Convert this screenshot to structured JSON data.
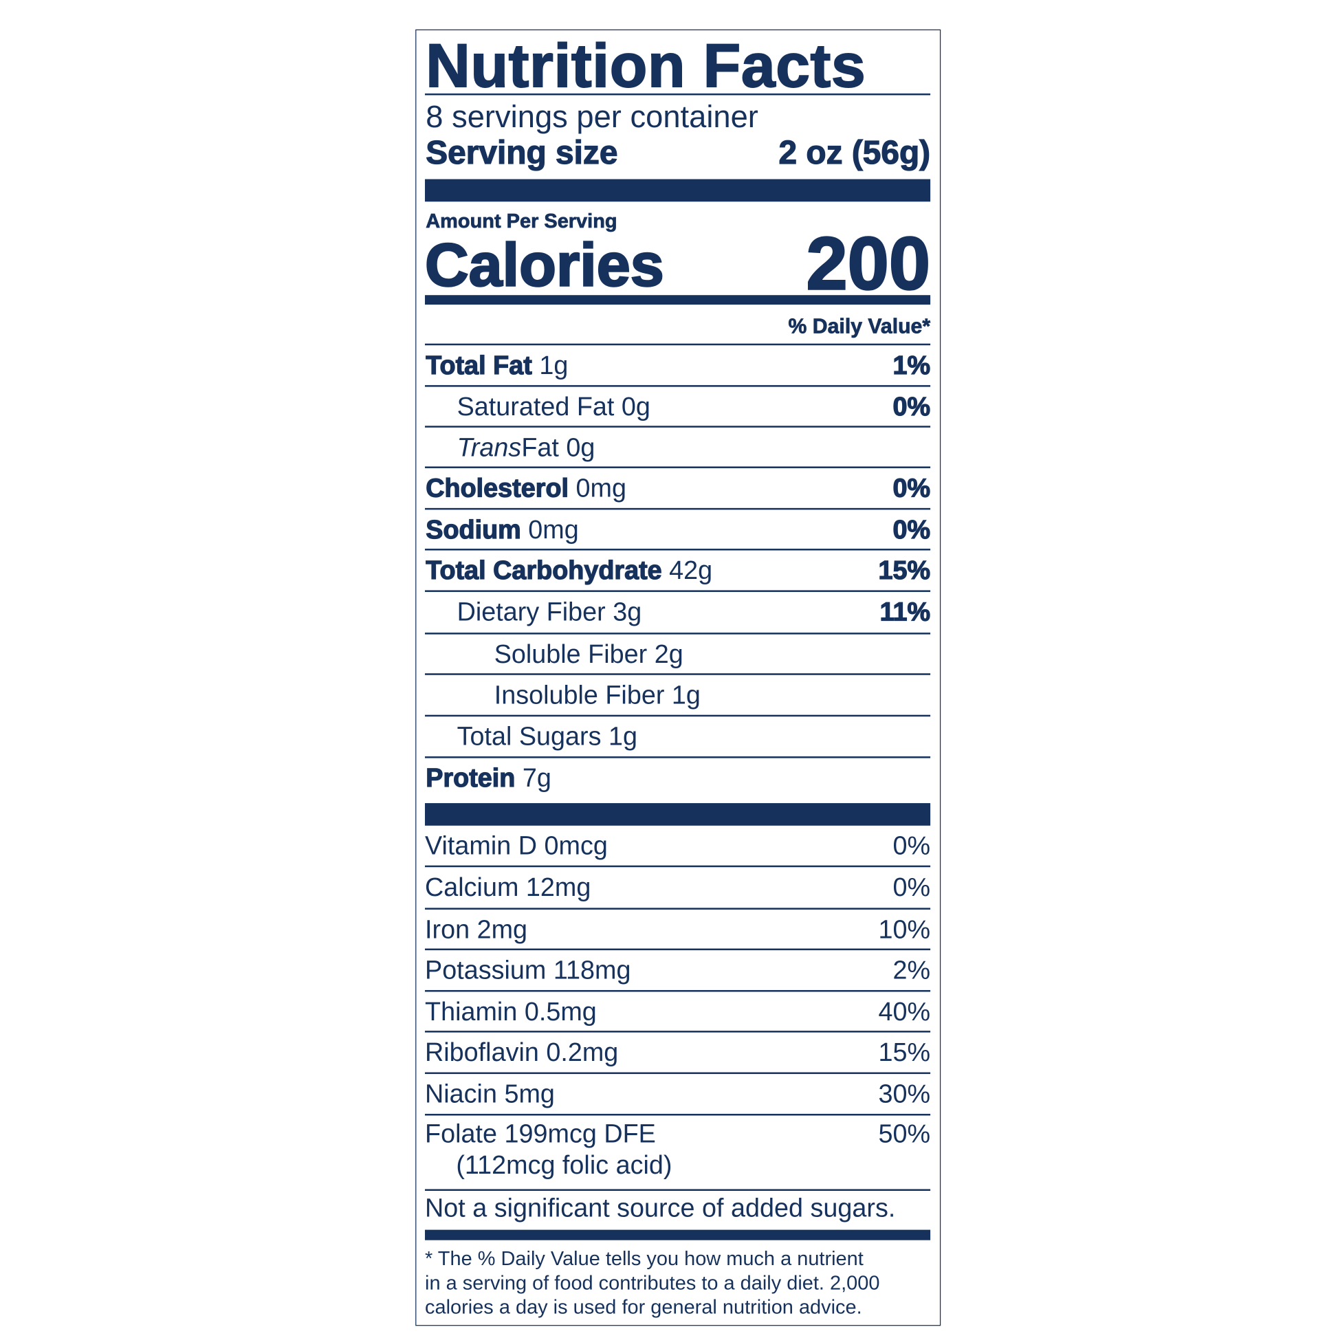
{
  "title": "Nutrition Facts",
  "servings_per_container": "8 servings per container",
  "serving_size": {
    "label": "Serving size",
    "value": "2 oz (56g)"
  },
  "amount_per_serving": "Amount Per Serving",
  "calories": {
    "label": "Calories",
    "value": "200"
  },
  "daily_value_header": "% Daily Value*",
  "nutrients": [
    {
      "name": "Total Fat",
      "amount": "1g",
      "dv": "1%",
      "bold": true,
      "indent": 0
    },
    {
      "name": "Saturated Fat",
      "amount": "0g",
      "dv": "0%",
      "bold": false,
      "indent": 1,
      "dv_bold": true
    },
    {
      "italic": "Trans",
      "name": " Fat",
      "amount": "0g",
      "dv": "",
      "bold": false,
      "indent": 1
    },
    {
      "name": "Cholesterol",
      "amount": "0mg",
      "dv": "0%",
      "bold": true,
      "indent": 0
    },
    {
      "name": "Sodium",
      "amount": "0mg",
      "dv": "0%",
      "bold": true,
      "indent": 0
    },
    {
      "name": "Total Carbohydrate",
      "amount": "42g",
      "dv": "15%",
      "bold": true,
      "indent": 0
    },
    {
      "name": "Dietary Fiber",
      "amount": "3g",
      "dv": "11%",
      "bold": false,
      "indent": 1,
      "dv_bold": true
    },
    {
      "name": "Soluble Fiber",
      "amount": "2g",
      "dv": "",
      "bold": false,
      "indent": 2
    },
    {
      "name": "Insoluble Fiber",
      "amount": "1g",
      "dv": "",
      "bold": false,
      "indent": 2
    },
    {
      "name": "Total Sugars",
      "amount": "1g",
      "dv": "",
      "bold": false,
      "indent": 1
    },
    {
      "name": "Protein",
      "amount": "7g",
      "dv": "",
      "bold": true,
      "indent": 0
    }
  ],
  "vitamins": [
    {
      "name": "Vitamin D",
      "amount": "0mcg",
      "dv": "0%"
    },
    {
      "name": "Calcium",
      "amount": "12mg",
      "dv": "0%"
    },
    {
      "name": "Iron",
      "amount": "2mg",
      "dv": "10%"
    },
    {
      "name": "Potassium",
      "amount": "118mg",
      "dv": "2%"
    },
    {
      "name": "Thiamin",
      "amount": "0.5mg",
      "dv": "40%"
    },
    {
      "name": "Riboflavin",
      "amount": "0.2mg",
      "dv": "15%"
    },
    {
      "name": "Niacin",
      "amount": "5mg",
      "dv": "30%"
    },
    {
      "name": "Folate",
      "amount": "199mcg DFE",
      "dv": "50%",
      "sub": "(112mcg folic acid)"
    }
  ],
  "added_sugars_note": "Not a significant source of added sugars.",
  "footnote": [
    "* The % Daily Value tells you how much a nutrient",
    "in a serving of food contributes to a daily diet. 2,000",
    "calories a day is used for general nutrition advice."
  ],
  "colors": {
    "ink": "#16325c",
    "background": "#ffffff"
  }
}
